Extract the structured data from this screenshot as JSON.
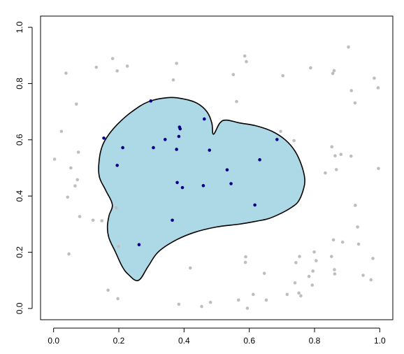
{
  "chart_data": {
    "type": "scatter",
    "title": "",
    "xlabel": "",
    "ylabel": "",
    "xlim": [
      0,
      1
    ],
    "ylim": [
      0,
      1
    ],
    "x_ticks": [
      0.0,
      0.2,
      0.4,
      0.6,
      0.8,
      1.0
    ],
    "y_ticks": [
      0.0,
      0.2,
      0.4,
      0.6,
      0.8,
      1.0
    ],
    "x_tick_labels": [
      "0.0",
      "0.2",
      "0.4",
      "0.6",
      "0.8",
      "1.0"
    ],
    "y_tick_labels": [
      "0.0",
      "0.2",
      "0.4",
      "0.6",
      "0.8",
      "1.0"
    ],
    "colors": {
      "heart_fill": "#add8e6",
      "heart_stroke": "#000000",
      "inside_points": "#00008b",
      "outside_points": "#bebebe"
    },
    "heart_outline": [
      [
        0.26,
        0.1
      ],
      [
        0.23,
        0.12
      ],
      [
        0.21,
        0.15
      ],
      [
        0.19,
        0.2
      ],
      [
        0.17,
        0.25
      ],
      [
        0.165,
        0.29
      ],
      [
        0.17,
        0.33
      ],
      [
        0.18,
        0.37
      ],
      [
        0.16,
        0.42
      ],
      [
        0.14,
        0.47
      ],
      [
        0.14,
        0.53
      ],
      [
        0.15,
        0.58
      ],
      [
        0.17,
        0.62
      ],
      [
        0.2,
        0.66
      ],
      [
        0.24,
        0.7
      ],
      [
        0.29,
        0.735
      ],
      [
        0.35,
        0.75
      ],
      [
        0.4,
        0.745
      ],
      [
        0.44,
        0.73
      ],
      [
        0.47,
        0.7
      ],
      [
        0.485,
        0.66
      ],
      [
        0.49,
        0.62
      ],
      [
        0.51,
        0.66
      ],
      [
        0.53,
        0.67
      ],
      [
        0.57,
        0.66
      ],
      [
        0.62,
        0.65
      ],
      [
        0.67,
        0.63
      ],
      [
        0.71,
        0.6
      ],
      [
        0.74,
        0.56
      ],
      [
        0.76,
        0.51
      ],
      [
        0.77,
        0.46
      ],
      [
        0.765,
        0.42
      ],
      [
        0.75,
        0.38
      ],
      [
        0.73,
        0.36
      ],
      [
        0.7,
        0.34
      ],
      [
        0.66,
        0.32
      ],
      [
        0.62,
        0.31
      ],
      [
        0.57,
        0.3
      ],
      [
        0.5,
        0.29
      ],
      [
        0.43,
        0.27
      ],
      [
        0.37,
        0.24
      ],
      [
        0.32,
        0.2
      ],
      [
        0.29,
        0.15
      ],
      [
        0.26,
        0.1
      ]
    ],
    "series": [
      {
        "values": [
          [
            0.298,
            0.738
          ],
          [
            0.154,
            0.606
          ],
          [
            0.212,
            0.572
          ],
          [
            0.306,
            0.572
          ],
          [
            0.342,
            0.601
          ],
          [
            0.384,
            0.612
          ],
          [
            0.386,
            0.645
          ],
          [
            0.388,
            0.639
          ],
          [
            0.377,
            0.566
          ],
          [
            0.462,
            0.674
          ],
          [
            0.478,
            0.563
          ],
          [
            0.195,
            0.509
          ],
          [
            0.379,
            0.448
          ],
          [
            0.395,
            0.43
          ],
          [
            0.459,
            0.437
          ],
          [
            0.532,
            0.493
          ],
          [
            0.544,
            0.444
          ],
          [
            0.632,
            0.529
          ],
          [
            0.685,
            0.601
          ],
          [
            0.617,
            0.368
          ],
          [
            0.364,
            0.314
          ],
          [
            0.262,
            0.227
          ]
        ]
      },
      {
        "values": [
          [
            0.003,
            0.531
          ],
          [
            0.024,
            0.63
          ],
          [
            0.038,
            0.837
          ],
          [
            0.043,
            0.396
          ],
          [
            0.047,
            0.194
          ],
          [
            0.053,
            0.5
          ],
          [
            0.066,
            0.436
          ],
          [
            0.07,
            0.727
          ],
          [
            0.073,
            0.458
          ],
          [
            0.076,
            0.556
          ],
          [
            0.08,
            0.327
          ],
          [
            0.121,
            0.314
          ],
          [
            0.131,
            0.858
          ],
          [
            0.148,
            0.312
          ],
          [
            0.167,
            0.065
          ],
          [
            0.181,
            0.889
          ],
          [
            0.192,
            0.358
          ],
          [
            0.195,
            0.845
          ],
          [
            0.197,
            0.035
          ],
          [
            0.199,
            0.221
          ],
          [
            0.226,
            0.862
          ],
          [
            0.367,
            0.813
          ],
          [
            0.377,
            0.872
          ],
          [
            0.384,
            0.015
          ],
          [
            0.419,
            0.144
          ],
          [
            0.454,
            0.007
          ],
          [
            0.481,
            0.022
          ],
          [
            0.551,
            0.832
          ],
          [
            0.561,
            0.736
          ],
          [
            0.567,
            0.03
          ],
          [
            0.586,
            0.898
          ],
          [
            0.591,
            0.878
          ],
          [
            0.588,
            0.164
          ],
          [
            0.589,
            0.184
          ],
          [
            0.594,
            0.001
          ],
          [
            0.612,
            0.05
          ],
          [
            0.646,
            0.125
          ],
          [
            0.652,
            0.03
          ],
          [
            0.696,
            0.63
          ],
          [
            0.703,
            0.828
          ],
          [
            0.716,
            0.05
          ],
          [
            0.74,
            0.091
          ],
          [
            0.743,
            0.163
          ],
          [
            0.737,
            0.597
          ],
          [
            0.752,
            0.055
          ],
          [
            0.754,
            0.185
          ],
          [
            0.758,
            0.045
          ],
          [
            0.783,
            0.114
          ],
          [
            0.788,
            0.856
          ],
          [
            0.793,
            0.083
          ],
          [
            0.795,
            0.133
          ],
          [
            0.799,
            0.201
          ],
          [
            0.805,
            0.17
          ],
          [
            0.833,
            0.482
          ],
          [
            0.852,
            0.185
          ],
          [
            0.853,
            0.575
          ],
          [
            0.856,
            0.836
          ],
          [
            0.858,
            0.244
          ],
          [
            0.86,
            0.846
          ],
          [
            0.862,
            0.123
          ],
          [
            0.861,
            0.138
          ],
          [
            0.863,
            0.543
          ],
          [
            0.867,
            0.494
          ],
          [
            0.881,
            0.548
          ],
          [
            0.886,
            0.236
          ],
          [
            0.904,
            0.93
          ],
          [
            0.913,
            0.775
          ],
          [
            0.912,
            0.542
          ],
          [
            0.924,
            0.731
          ],
          [
            0.925,
            0.367
          ],
          [
            0.932,
            0.29
          ],
          [
            0.935,
            0.229
          ],
          [
            0.949,
            0.118
          ],
          [
            0.973,
            0.102
          ],
          [
            0.979,
            0.178
          ],
          [
            0.983,
            0.819
          ],
          [
            0.995,
            0.785
          ],
          [
            0.996,
            0.498
          ]
        ]
      }
    ]
  }
}
